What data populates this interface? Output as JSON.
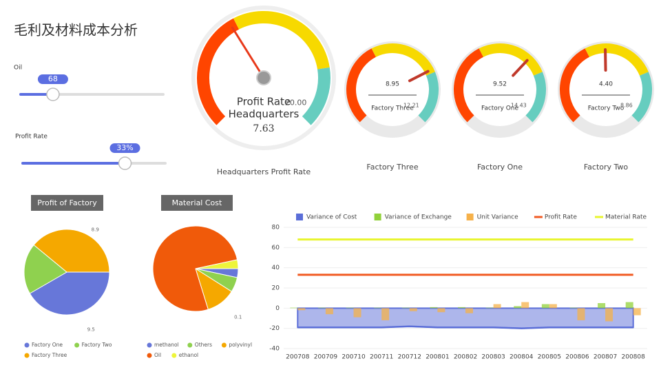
{
  "title": "毛利及材料成本分析",
  "sliders": [
    {
      "label": "Oil",
      "value": 68,
      "range": [
        0,
        300
      ]
    },
    {
      "label": "Profit Rate",
      "value": 33,
      "value_label": "33%",
      "range": [
        0,
        46
      ]
    }
  ],
  "chart_data": [
    {
      "type": "gauge",
      "title": [
        "Profit Rate",
        "Headquarters"
      ],
      "label": "Headquarters Profit Rate",
      "value": 7.63,
      "min": 0,
      "max": {
        "value": 20,
        "label": "20.00"
      },
      "bands": [
        [
          0.4,
          "#ff4500"
        ],
        [
          0.8,
          "#f7d900"
        ],
        [
          1,
          "#66cdbf"
        ]
      ]
    },
    {
      "type": "gauge",
      "title": [
        "Factory Three"
      ],
      "label": "Factory Three",
      "value": 8.95,
      "min": 0,
      "max": 12.21,
      "bands": [
        [
          0.4,
          "#ff4500"
        ],
        [
          0.75,
          "#f7d900"
        ],
        [
          1,
          "#66cdbf"
        ]
      ]
    },
    {
      "type": "gauge",
      "title": [
        "Factory One"
      ],
      "label": "Factory One",
      "value": 9.52,
      "min": 0,
      "max": 14.43,
      "bands": [
        [
          0.4,
          "#ff4500"
        ],
        [
          0.75,
          "#f7d900"
        ],
        [
          1,
          "#66cdbf"
        ]
      ]
    },
    {
      "type": "gauge",
      "title": [
        "Factory Two"
      ],
      "label": "Factory Two",
      "value": 4.4,
      "value_label": "4.40",
      "min": 0,
      "max": 8.86,
      "bands": [
        [
          0.4,
          "#ff4500"
        ],
        [
          0.75,
          "#f7d900"
        ],
        [
          1,
          "#66cdbf"
        ]
      ]
    },
    {
      "type": "pie",
      "title": "Profit of Factory",
      "categories": [
        "Factory One",
        "Factory Two",
        "Factory Three"
      ],
      "values": [
        9.5,
        4.4,
        8.9
      ],
      "value_labels": [
        "9.5",
        null,
        "8.9"
      ],
      "colors": [
        "#6777d9",
        "#8fd14f",
        "#f5a800"
      ]
    },
    {
      "type": "pie",
      "title": "Material Cost",
      "categories": [
        "methanol",
        "Others",
        "polyvinyl",
        "Oil",
        "ethanol"
      ],
      "values": [
        0.03,
        0.05,
        0.1,
        0.68,
        0.03
      ],
      "value_labels": [
        null,
        null,
        "0.1",
        null,
        null
      ],
      "colors": [
        "#6777d9",
        "#8fd14f",
        "#f5a800",
        "#f05a0a",
        "#eef53a"
      ]
    },
    {
      "type": "combo",
      "categories": [
        "200708",
        "200709",
        "200710",
        "200711",
        "200712",
        "200801",
        "200802",
        "200803",
        "200804",
        "200805",
        "200806",
        "200807",
        "200808"
      ],
      "ylim": [
        -40,
        80
      ],
      "yticks": [
        -40,
        -20,
        0,
        20,
        40,
        60,
        80
      ],
      "grid": true,
      "series": [
        {
          "name": "Variance of Cost",
          "type": "area",
          "color": "#5b6ed8",
          "values": [
            -19,
            -19,
            -19,
            -19,
            -18,
            -19,
            -19,
            -19,
            -20,
            -19,
            -19,
            -19,
            -19
          ]
        },
        {
          "name": "Variance of Exchange",
          "type": "bar",
          "color": "#91d13a",
          "values": [
            0.5,
            0.5,
            0.5,
            0.5,
            0.5,
            1,
            1,
            0.5,
            2,
            4,
            0.5,
            5,
            6
          ]
        },
        {
          "name": "Unit Variance",
          "type": "bar",
          "color": "#f6b14a",
          "values": [
            -2,
            -6,
            -9,
            -12,
            -3,
            -4,
            -5,
            4,
            6,
            4,
            -12,
            -13,
            -7
          ]
        },
        {
          "name": "Profit Rate",
          "type": "line",
          "color": "#f15a22",
          "values": [
            33,
            33,
            33,
            33,
            33,
            33,
            33,
            33,
            33,
            33,
            33,
            33,
            33
          ]
        },
        {
          "name": "Material Rate",
          "type": "line",
          "color": "#e8f52e",
          "values": [
            68,
            68,
            68,
            68,
            68,
            68,
            68,
            68,
            68,
            68,
            68,
            68,
            68
          ]
        }
      ]
    }
  ]
}
